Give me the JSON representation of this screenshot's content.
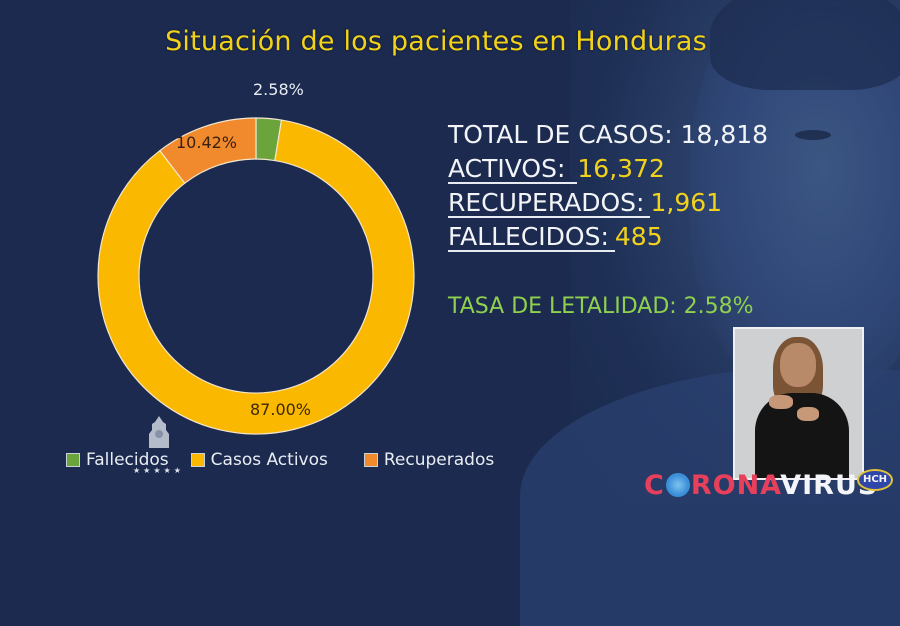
{
  "title": "Situación de los pacientes en Honduras",
  "chart_data": {
    "type": "pie",
    "subtype": "donut",
    "title": "Situación de los pacientes en Honduras",
    "categories": [
      "Fallecidos",
      "Casos Activos",
      "Recuperados"
    ],
    "values": [
      2.58,
      87.0,
      10.42
    ],
    "data_labels": [
      "2.58%",
      "87.00%",
      "10.42%"
    ],
    "colors": [
      "#6aa43b",
      "#fbb800",
      "#f08a2c"
    ],
    "legend_position": "bottom",
    "start_angle_deg": 0,
    "direction": "clockwise"
  },
  "legend": {
    "items": [
      {
        "label": "Fallecidos",
        "color": "#6aa43b"
      },
      {
        "label": "Casos Activos",
        "color": "#fbb800"
      },
      {
        "label": "Recuperados",
        "color": "#f08a2c"
      }
    ]
  },
  "stats": {
    "total_label": "TOTAL DE CASOS:",
    "total_value": "18,818",
    "activos_label": "ACTIVOS:",
    "activos_value": "16,372",
    "recuperados_label": "RECUPERADOS:",
    "recuperados_value": "1,961",
    "fallecidos_label": "FALLECIDOS:",
    "fallecidos_value": "485",
    "tasa_label": "TASA DE LETALIDAD:",
    "tasa_value": "2.58%"
  },
  "branding": {
    "corona_part1": "C",
    "corona_part2": "RONA",
    "corona_part3": "VIRUS",
    "channel": "HCH",
    "emblem_stars": "★★★★★"
  }
}
